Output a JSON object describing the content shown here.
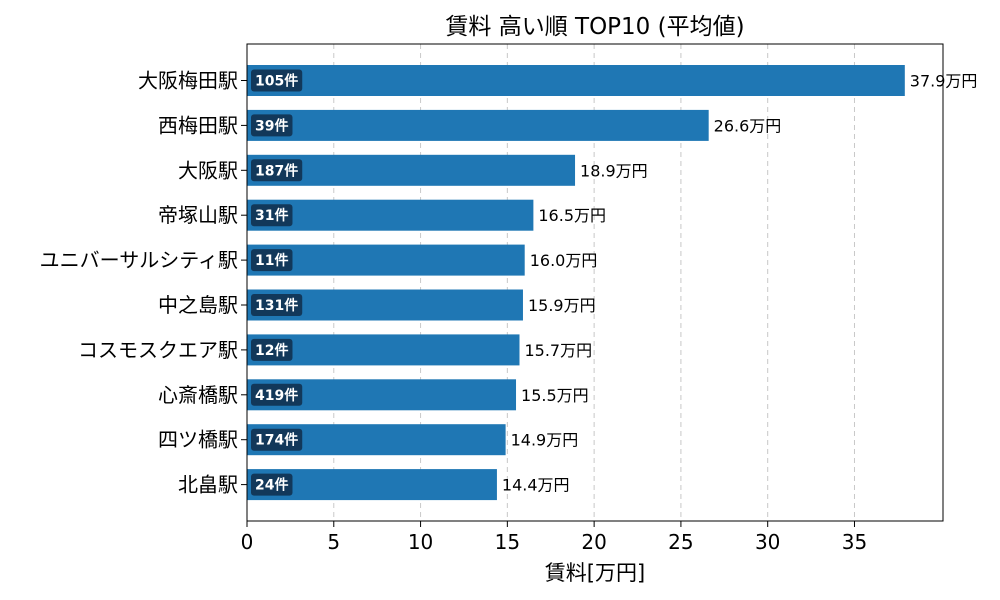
{
  "chart_data": {
    "type": "bar",
    "orientation": "horizontal",
    "title": "賃料 高い順 TOP10 (平均値)",
    "xlabel": "賃料[万円]",
    "ylabel": "",
    "xlim": [
      0,
      40
    ],
    "xticks": [
      0,
      5,
      10,
      15,
      20,
      25,
      30,
      35
    ],
    "grid": "vertical dashed",
    "categories": [
      "大阪梅田駅",
      "西梅田駅",
      "大阪駅",
      "帝塚山駅",
      "ユニバーサルシティ駅",
      "中之島駅",
      "コスモスクエア駅",
      "心斎橋駅",
      "四ツ橋駅",
      "北畠駅"
    ],
    "values": [
      37.9,
      26.6,
      18.9,
      16.5,
      16.0,
      15.9,
      15.7,
      15.5,
      14.9,
      14.4
    ],
    "value_labels": [
      "37.9万円",
      "26.6万円",
      "18.9万円",
      "16.5万円",
      "16.0万円",
      "15.9万円",
      "15.7万円",
      "15.5万円",
      "14.9万円",
      "14.4万円"
    ],
    "count_labels": [
      "105件",
      "39件",
      "187件",
      "31件",
      "11件",
      "131件",
      "12件",
      "419件",
      "174件",
      "24件"
    ]
  },
  "colors": {
    "bar": "#1f77b4",
    "count_badge": "#12385a",
    "grid": "#c8c8c8",
    "axis": "#000000"
  }
}
